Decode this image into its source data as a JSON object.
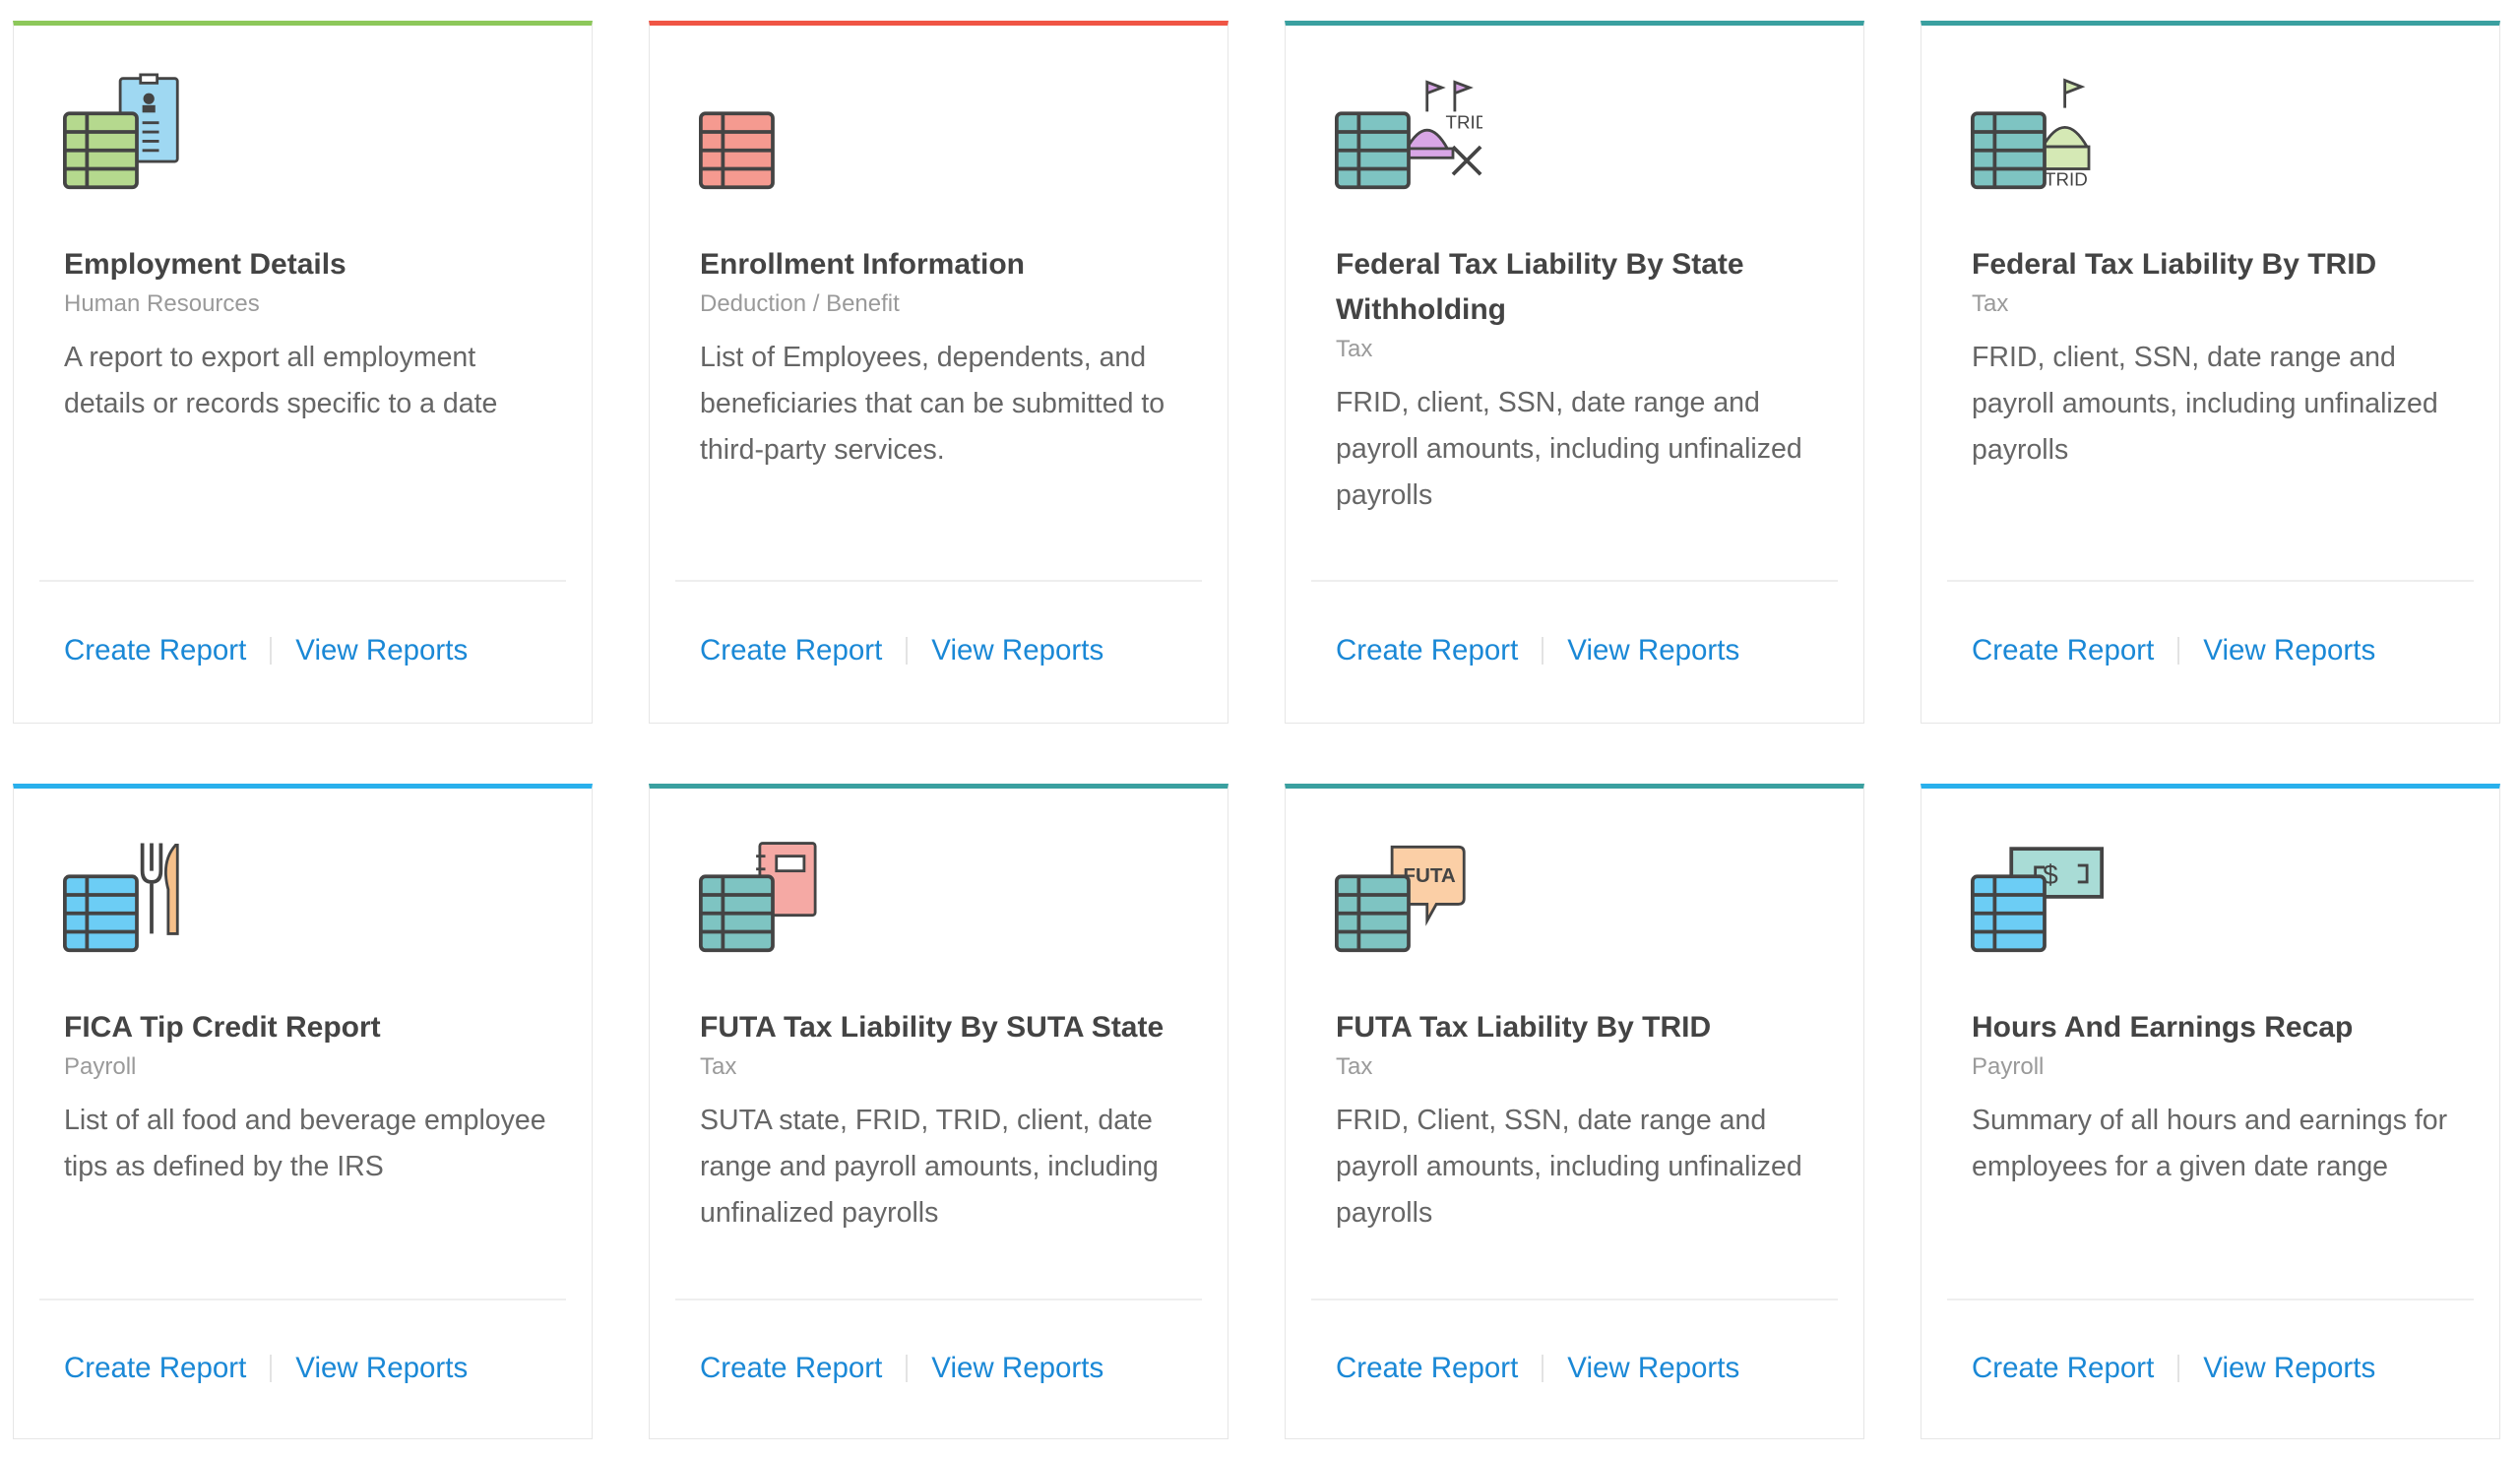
{
  "colors": {
    "green": "#8dc85a",
    "red": "#f05545",
    "teal": "#3aa0a0",
    "blue": "#29b0ec",
    "link": "#1a88d6"
  },
  "cards": [
    {
      "title": "Employment Details",
      "category": "Human Resources",
      "description": "A report to export all employment details or records specific to a date",
      "create_label": "Create Report",
      "view_label": "View Reports",
      "accent": "#8dc85a",
      "icon": "table-clipboard-icon"
    },
    {
      "title": "Enrollment Information",
      "category": "Deduction / Benefit",
      "description": "List of Employees, dependents, and beneficiaries that can be submitted to third-party services.",
      "create_label": "Create Report",
      "view_label": "View Reports",
      "accent": "#f05545",
      "icon": "table-icon"
    },
    {
      "title": "Federal Tax Liability By State Withholding",
      "category": "Tax",
      "description": "FRID, client, SSN, date range and payroll amounts, including unfinalized payrolls",
      "create_label": "Create Report",
      "view_label": "View Reports",
      "accent": "#3aa0a0",
      "icon": "table-capitol-trid-icon",
      "icon_text": "TRID"
    },
    {
      "title": "Federal Tax Liability By TRID",
      "category": "Tax",
      "description": "FRID, client, SSN, date range and payroll amounts, including unfinalized payrolls",
      "create_label": "Create Report",
      "view_label": "View Reports",
      "accent": "#3aa0a0",
      "icon": "table-capitol-icon",
      "icon_text": "TRID"
    },
    {
      "title": "FICA Tip Credit Report",
      "category": "Payroll",
      "description": "List of all food and beverage employee tips as defined by the IRS",
      "create_label": "Create Report",
      "view_label": "View Reports",
      "accent": "#29b0ec",
      "icon": "table-fork-knife-icon"
    },
    {
      "title": "FUTA Tax Liability By SUTA State",
      "category": "Tax",
      "description": "SUTA state, FRID, TRID, client, date range and payroll amounts, including unfinalized payrolls",
      "create_label": "Create Report",
      "view_label": "View Reports",
      "accent": "#3aa0a0",
      "icon": "table-notebook-icon"
    },
    {
      "title": "FUTA Tax Liability By TRID",
      "category": "Tax",
      "description": "FRID, Client, SSN, date range and payroll amounts, including unfinalized payrolls",
      "create_label": "Create Report",
      "view_label": "View Reports",
      "accent": "#3aa0a0",
      "icon": "table-speech-bubble-icon",
      "icon_text": "FUTA"
    },
    {
      "title": "Hours And Earnings Recap",
      "category": "Payroll",
      "description": "Summary of all hours and earnings for employees for a given date range",
      "create_label": "Create Report",
      "view_label": "View Reports",
      "accent": "#29b0ec",
      "icon": "table-dollar-bill-icon"
    }
  ]
}
